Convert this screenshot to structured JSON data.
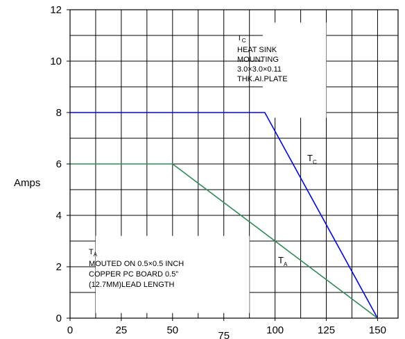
{
  "chart_data": {
    "type": "line",
    "ylabel": "Amps",
    "xlim": [
      0,
      160
    ],
    "ylim": [
      0,
      12
    ],
    "x_ticks": [
      "0",
      "25",
      "50",
      "75",
      "100",
      "125",
      "150"
    ],
    "x_tick_values": [
      0,
      25,
      50,
      75,
      100,
      125,
      150
    ],
    "y_ticks": [
      "0",
      "2",
      "4",
      "6",
      "8",
      "10",
      "12"
    ],
    "y_tick_values": [
      0,
      2,
      4,
      6,
      8,
      10,
      12
    ],
    "grid": true,
    "series": [
      {
        "name": "TC",
        "color": "#0000ff",
        "x": [
          0,
          95,
          150
        ],
        "y": [
          8,
          8,
          0
        ]
      },
      {
        "name": "TA",
        "color": "#2e8b57",
        "x": [
          0,
          50,
          150
        ],
        "y": [
          6,
          6,
          0
        ]
      }
    ],
    "labels": {
      "tc_main": "T",
      "tc_sub": "C",
      "ta_main": "T",
      "ta_sub": "A"
    },
    "annotations": {
      "tc_lines": [
        "HEAT SINK",
        "MOUNTING",
        "3.0×3.0×0.11",
        "THK.AI.PLATE"
      ],
      "ta_lines": [
        "MOUTED ON 0.5×0.5 INCH",
        "COPPER PC BOARD 0.5”",
        "(12.7MM)LEAD LENGTH"
      ]
    }
  }
}
